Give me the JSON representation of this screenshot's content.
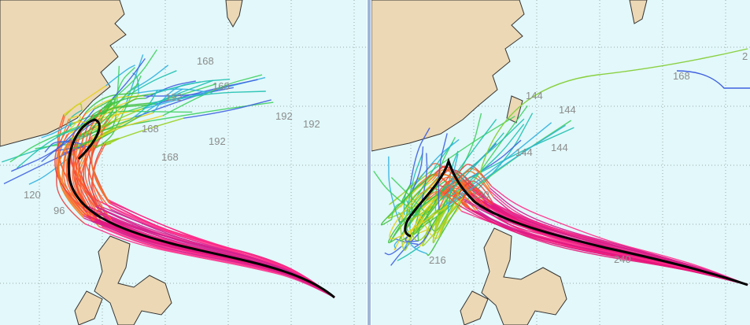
{
  "panels": [
    {
      "labels": [
        "168",
        "168",
        "168",
        "192",
        "192",
        "192",
        "192",
        "168",
        "120",
        "96"
      ]
    },
    {
      "labels": [
        "2",
        "168",
        "144",
        "144",
        "144",
        "144",
        "120",
        "216",
        "240"
      ]
    }
  ]
}
